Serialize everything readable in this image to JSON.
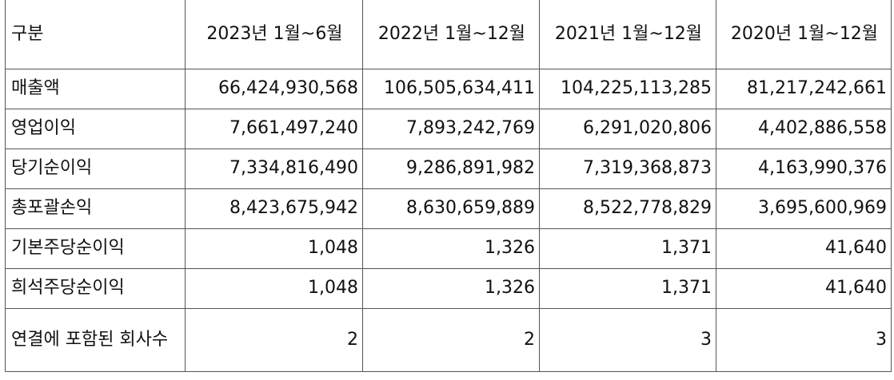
{
  "table": {
    "header": [
      "구분",
      "2023년 1월~6월",
      "2022년 1월~12월",
      "2021년 1월~12월",
      "2020년 1월~12월"
    ],
    "rows": [
      {
        "label": "매출액",
        "values": [
          "66,424,930,568",
          "106,505,634,411",
          "104,225,113,285",
          "81,217,242,661"
        ]
      },
      {
        "label": "영업이익",
        "values": [
          "7,661,497,240",
          "7,893,242,769",
          "6,291,020,806",
          "4,402,886,558"
        ]
      },
      {
        "label": "당기순이익",
        "values": [
          "7,334,816,490",
          "9,286,891,982",
          "7,319,368,873",
          "4,163,990,376"
        ]
      },
      {
        "label": "총포괄손익",
        "values": [
          "8,423,675,942",
          "8,630,659,889",
          "8,522,778,829",
          "3,695,600,969"
        ]
      },
      {
        "label": "기본주당순이익",
        "values": [
          "1,048",
          "1,326",
          "1,371",
          "41,640"
        ]
      },
      {
        "label": "희석주당순이익",
        "values": [
          "1,048",
          "1,326",
          "1,371",
          "41,640"
        ]
      },
      {
        "label": "연결에 포함된 회사수",
        "values": [
          "2",
          "2",
          "3",
          "3"
        ]
      }
    ]
  }
}
